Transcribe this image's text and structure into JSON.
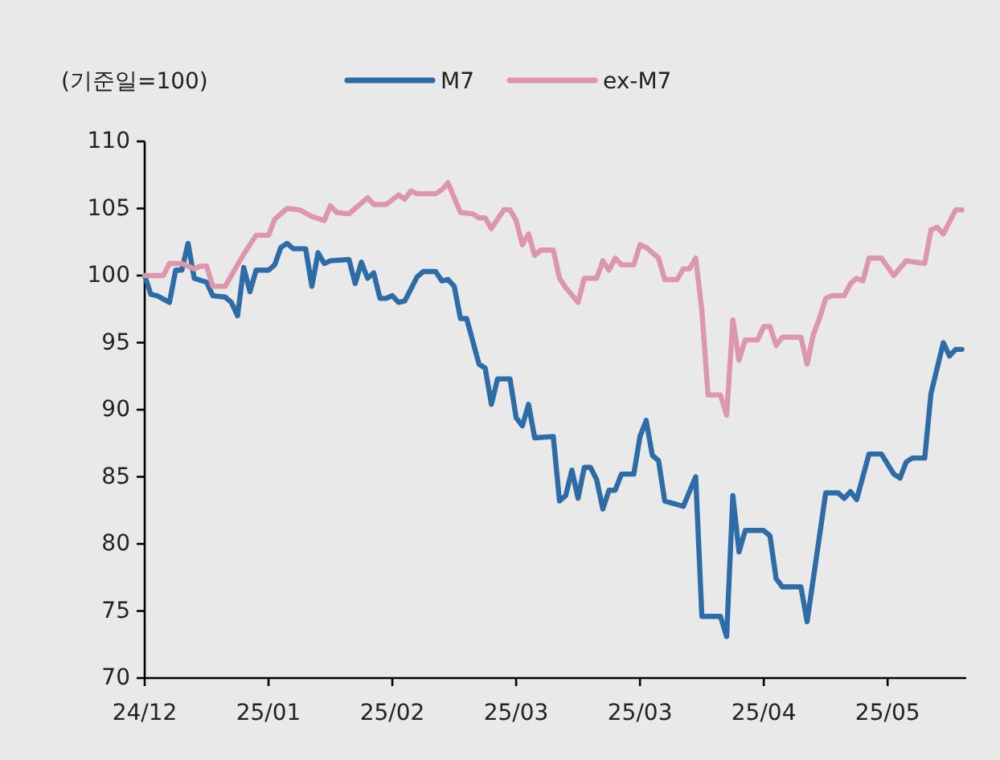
{
  "chart_data": {
    "type": "line",
    "ylabel": "(기준일=100)",
    "legend": "top",
    "categories": [
      "24/12",
      null,
      null,
      null,
      null,
      null,
      null,
      null,
      null,
      null,
      null,
      null,
      null,
      null,
      null,
      null,
      null,
      null,
      null,
      null,
      "25/01",
      null,
      null,
      null,
      null,
      null,
      null,
      null,
      null,
      null,
      null,
      null,
      null,
      null,
      null,
      null,
      null,
      null,
      null,
      null,
      "25/02",
      null,
      null,
      null,
      null,
      null,
      null,
      null,
      null,
      null,
      null,
      null,
      null,
      null,
      null,
      null,
      null,
      null,
      null,
      null,
      "25/03",
      null,
      null,
      null,
      null,
      null,
      null,
      null,
      null,
      null,
      null,
      null,
      null,
      null,
      null,
      null,
      null,
      null,
      null,
      null,
      "25/03",
      null,
      null,
      null,
      null,
      null,
      null,
      null,
      null,
      null,
      null,
      null,
      null,
      null,
      null,
      null,
      null,
      null,
      null,
      null,
      "25/04",
      null,
      null,
      null,
      null,
      null,
      null,
      null,
      null,
      null,
      null,
      null,
      null,
      null,
      null,
      null,
      null,
      null,
      null,
      null,
      "25/05",
      null,
      null,
      null,
      null,
      null,
      null,
      null,
      null,
      null,
      null,
      null,
      null
    ],
    "ylim": [
      70,
      110
    ],
    "yticks": [
      70,
      75,
      80,
      85,
      90,
      95,
      100,
      105,
      110
    ],
    "series": [
      {
        "name": "M7",
        "color": "#2e6ca8",
        "values": [
          100,
          98.6,
          98.5,
          null,
          98.0,
          100.4,
          100.4,
          102.4,
          99.8,
          null,
          99.5,
          98.5,
          null,
          98.4,
          98.0,
          97.0,
          100.6,
          98.8,
          100.4,
          null,
          100.4,
          100.8,
          102.1,
          102.4,
          102.0,
          null,
          102.0,
          99.2,
          101.7,
          100.9,
          101.1,
          null,
          null,
          101.2,
          99.4,
          101.0,
          99.8,
          100.2,
          98.3,
          98.3,
          98.5,
          98.0,
          98.1,
          null,
          99.9,
          100.3,
          null,
          100.3,
          99.6,
          99.7,
          99.2,
          96.8,
          96.8,
          null,
          93.4,
          93.1,
          90.4,
          92.3,
          null,
          92.3,
          89.4,
          88.8,
          90.4,
          87.9,
          null,
          null,
          88.0,
          83.2,
          83.6,
          85.5,
          83.4,
          85.7,
          85.7,
          84.8,
          82.6,
          84.0,
          84.0,
          85.2,
          null,
          85.2,
          88.0,
          89.2,
          86.6,
          86.2,
          83.2,
          null,
          null,
          82.8,
          null,
          85.0,
          74.6,
          null,
          null,
          74.6,
          73.1,
          83.6,
          79.4,
          81.0,
          null,
          null,
          81.0,
          80.6,
          77.4,
          76.8,
          null,
          null,
          76.8,
          74.2,
          null,
          null,
          83.8,
          null,
          83.8,
          83.4,
          83.9,
          83.3,
          null,
          86.7,
          null,
          86.7,
          null,
          85.2,
          84.9,
          86.1,
          86.4,
          null,
          86.4,
          91.2,
          null,
          95.0,
          94.0,
          94.5,
          94.5
        ]
      },
      {
        "name": "ex-M7",
        "color": "#dc97ab",
        "values": [
          100.0,
          null,
          null,
          100.0,
          100.9,
          null,
          100.9,
          null,
          100.5,
          100.7,
          100.7,
          99.2,
          null,
          99.2,
          100.0,
          null,
          101.6,
          null,
          103.0,
          null,
          103.0,
          104.2,
          null,
          105.0,
          null,
          104.9,
          null,
          104.4,
          null,
          104.1,
          105.2,
          104.7,
          null,
          104.6,
          105.0,
          null,
          105.8,
          105.3,
          null,
          105.3,
          null,
          106.0,
          105.7,
          106.3,
          106.1,
          null,
          null,
          106.1,
          106.4,
          106.9,
          null,
          104.7,
          null,
          104.6,
          104.3,
          104.3,
          103.5,
          null,
          104.9,
          104.9,
          104.1,
          102.3,
          103.1,
          101.5,
          101.9,
          null,
          101.9,
          99.8,
          99.1,
          null,
          98.0,
          99.8,
          null,
          99.8,
          101.1,
          100.4,
          101.3,
          100.8,
          null,
          100.8,
          102.3,
          102.1,
          null,
          101.3,
          99.7,
          null,
          99.7,
          100.5,
          100.5,
          101.3,
          97.4,
          91.1,
          null,
          91.1,
          89.6,
          96.7,
          93.7,
          95.2,
          null,
          95.2,
          96.2,
          96.2,
          94.8,
          95.4,
          null,
          null,
          95.4,
          93.4,
          95.6,
          96.8,
          98.3,
          98.5,
          null,
          98.5,
          99.4,
          99.8,
          99.6,
          101.3,
          null,
          101.3,
          null,
          100.0,
          null,
          101.1,
          null,
          null,
          100.9,
          103.4,
          103.6,
          103.1,
          null,
          104.9,
          104.9
        ]
      }
    ]
  }
}
